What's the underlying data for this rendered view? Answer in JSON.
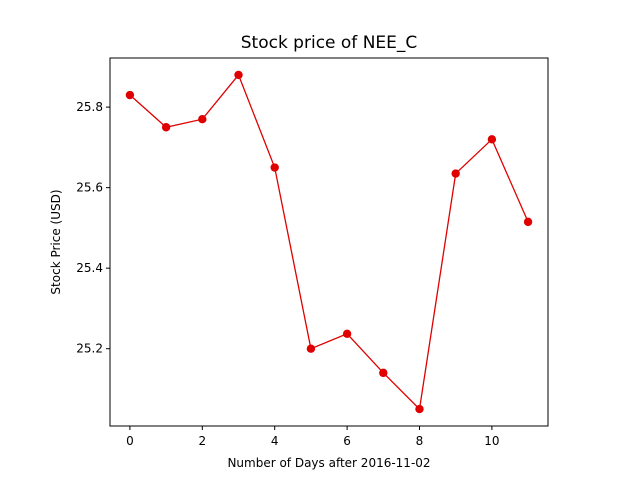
{
  "chart_data": {
    "type": "line",
    "title": "Stock price of NEE_C",
    "xlabel": "Number of Days after 2016-11-02",
    "ylabel": "Stock Price (USD)",
    "x": [
      0,
      1,
      2,
      3,
      4,
      5,
      6,
      7,
      8,
      9,
      10,
      11
    ],
    "series": [
      {
        "values": [
          25.83,
          25.75,
          25.77,
          25.88,
          25.65,
          25.2,
          25.237,
          25.14,
          25.05,
          25.635,
          25.72,
          25.515
        ],
        "color": "#e00000",
        "marker": "circle"
      }
    ],
    "xlim": [
      -0.55,
      11.55
    ],
    "ylim": [
      25.008,
      25.922
    ],
    "xticks": [
      0,
      2,
      4,
      6,
      8,
      10
    ],
    "yticks": [
      25.2,
      25.4,
      25.6,
      25.8
    ],
    "xtick_labels": [
      "0",
      "2",
      "4",
      "6",
      "8",
      "10"
    ],
    "ytick_labels": [
      "25.2",
      "25.4",
      "25.6",
      "25.8"
    ],
    "grid": false,
    "legend": "none"
  }
}
